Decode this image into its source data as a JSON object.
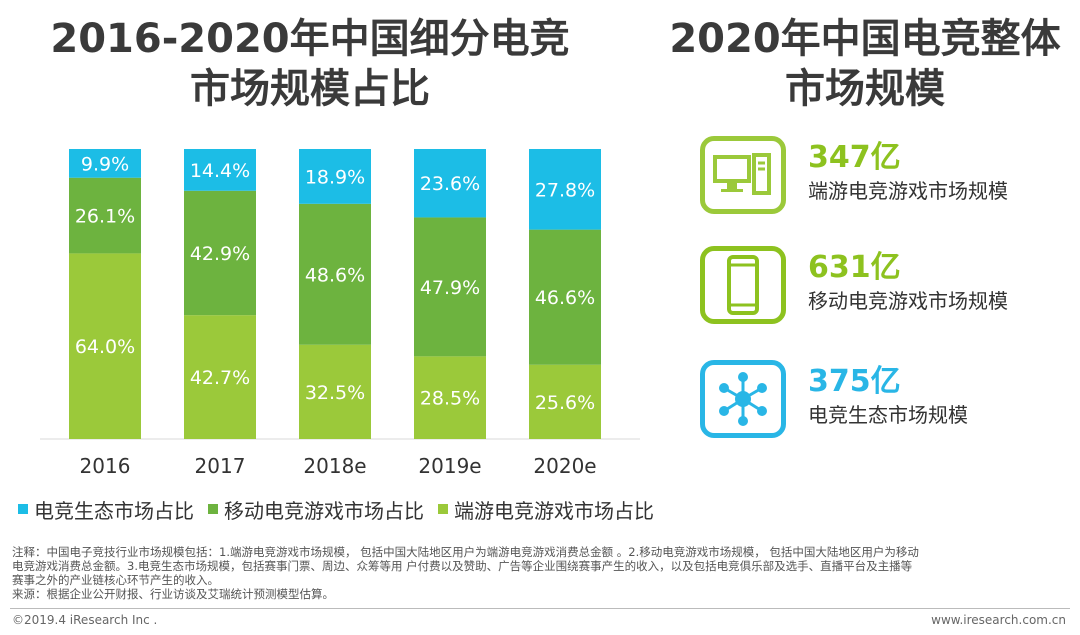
{
  "left_title_line1": "2016-2020年中国细分电竞",
  "left_title_line2": "市场规模占比",
  "right_title_line1": "2020年中国电竞整体",
  "right_title_line2": "市场规模",
  "colors": {
    "ecosystem": "#1cbde6",
    "mobile": "#6db33f",
    "pc": "#9bc93a",
    "pc_label": "#8dc21f",
    "mobile_label": "#8dc21f",
    "eco_label": "#29b6e6"
  },
  "chart_data": {
    "type": "bar",
    "stacked": true,
    "categories": [
      "2016",
      "2017",
      "2018e",
      "2019e",
      "2020e"
    ],
    "ylim": [
      0,
      100
    ],
    "series": [
      {
        "name": "端游电竞游戏市场占比",
        "values": [
          64.0,
          42.7,
          32.5,
          28.5,
          25.6
        ],
        "labels": [
          "64.0%",
          "42.7%",
          "32.5%",
          "28.5%",
          "25.6%"
        ]
      },
      {
        "name": "移动电竞游戏市场占比",
        "values": [
          26.1,
          42.9,
          48.6,
          47.9,
          46.6
        ],
        "labels": [
          "26.1%",
          "42.9%",
          "48.6%",
          "47.9%",
          "46.6%"
        ]
      },
      {
        "name": "电竞生态市场占比",
        "values": [
          9.9,
          14.4,
          18.9,
          23.6,
          27.8
        ],
        "labels": [
          "9.9%",
          "14.4%",
          "18.9%",
          "23.6%",
          "27.8%"
        ]
      }
    ]
  },
  "legend": [
    {
      "label": "电竞生态市场占比",
      "color": "#1cbde6"
    },
    {
      "label": "移动电竞游戏市场占比",
      "color": "#6db33f"
    },
    {
      "label": "端游电竞游戏市场占比",
      "color": "#9bc93a"
    }
  ],
  "stats": [
    {
      "value": "347亿",
      "label": "端游电竞游戏市场规模",
      "icon": "desktop-computer-icon"
    },
    {
      "value": "631亿",
      "label": "移动电竞游戏市场规模",
      "icon": "mobile-phone-icon"
    },
    {
      "value": "375亿",
      "label": "电竞生态市场规模",
      "icon": "network-hub-icon"
    }
  ],
  "notes": {
    "line1": "注释：中国电子竞技行业市场规模包括：1.端游电竞游戏市场规模， 包括中国大陆地区用户为端游电竞游戏消费总金额 。2.移动电竞游戏市场规模， 包括中国大陆地区用户为移动",
    "line2": "电竞游戏消费总金额。3.电竞生态市场规模，包括赛事门票、周边、众筹等用 户付费以及赞助、广告等企业围绕赛事产生的收入，以及包括电竞俱乐部及选手、直播平台及主播等",
    "line3": "赛事之外的产业链核心环节产生的收入。",
    "source": "来源：根据企业公开财报、行业访谈及艾瑞统计预测模型估算。"
  },
  "footer": {
    "copyright": "©2019.4 iResearch Inc .",
    "website": "www.iresearch.com.cn"
  }
}
